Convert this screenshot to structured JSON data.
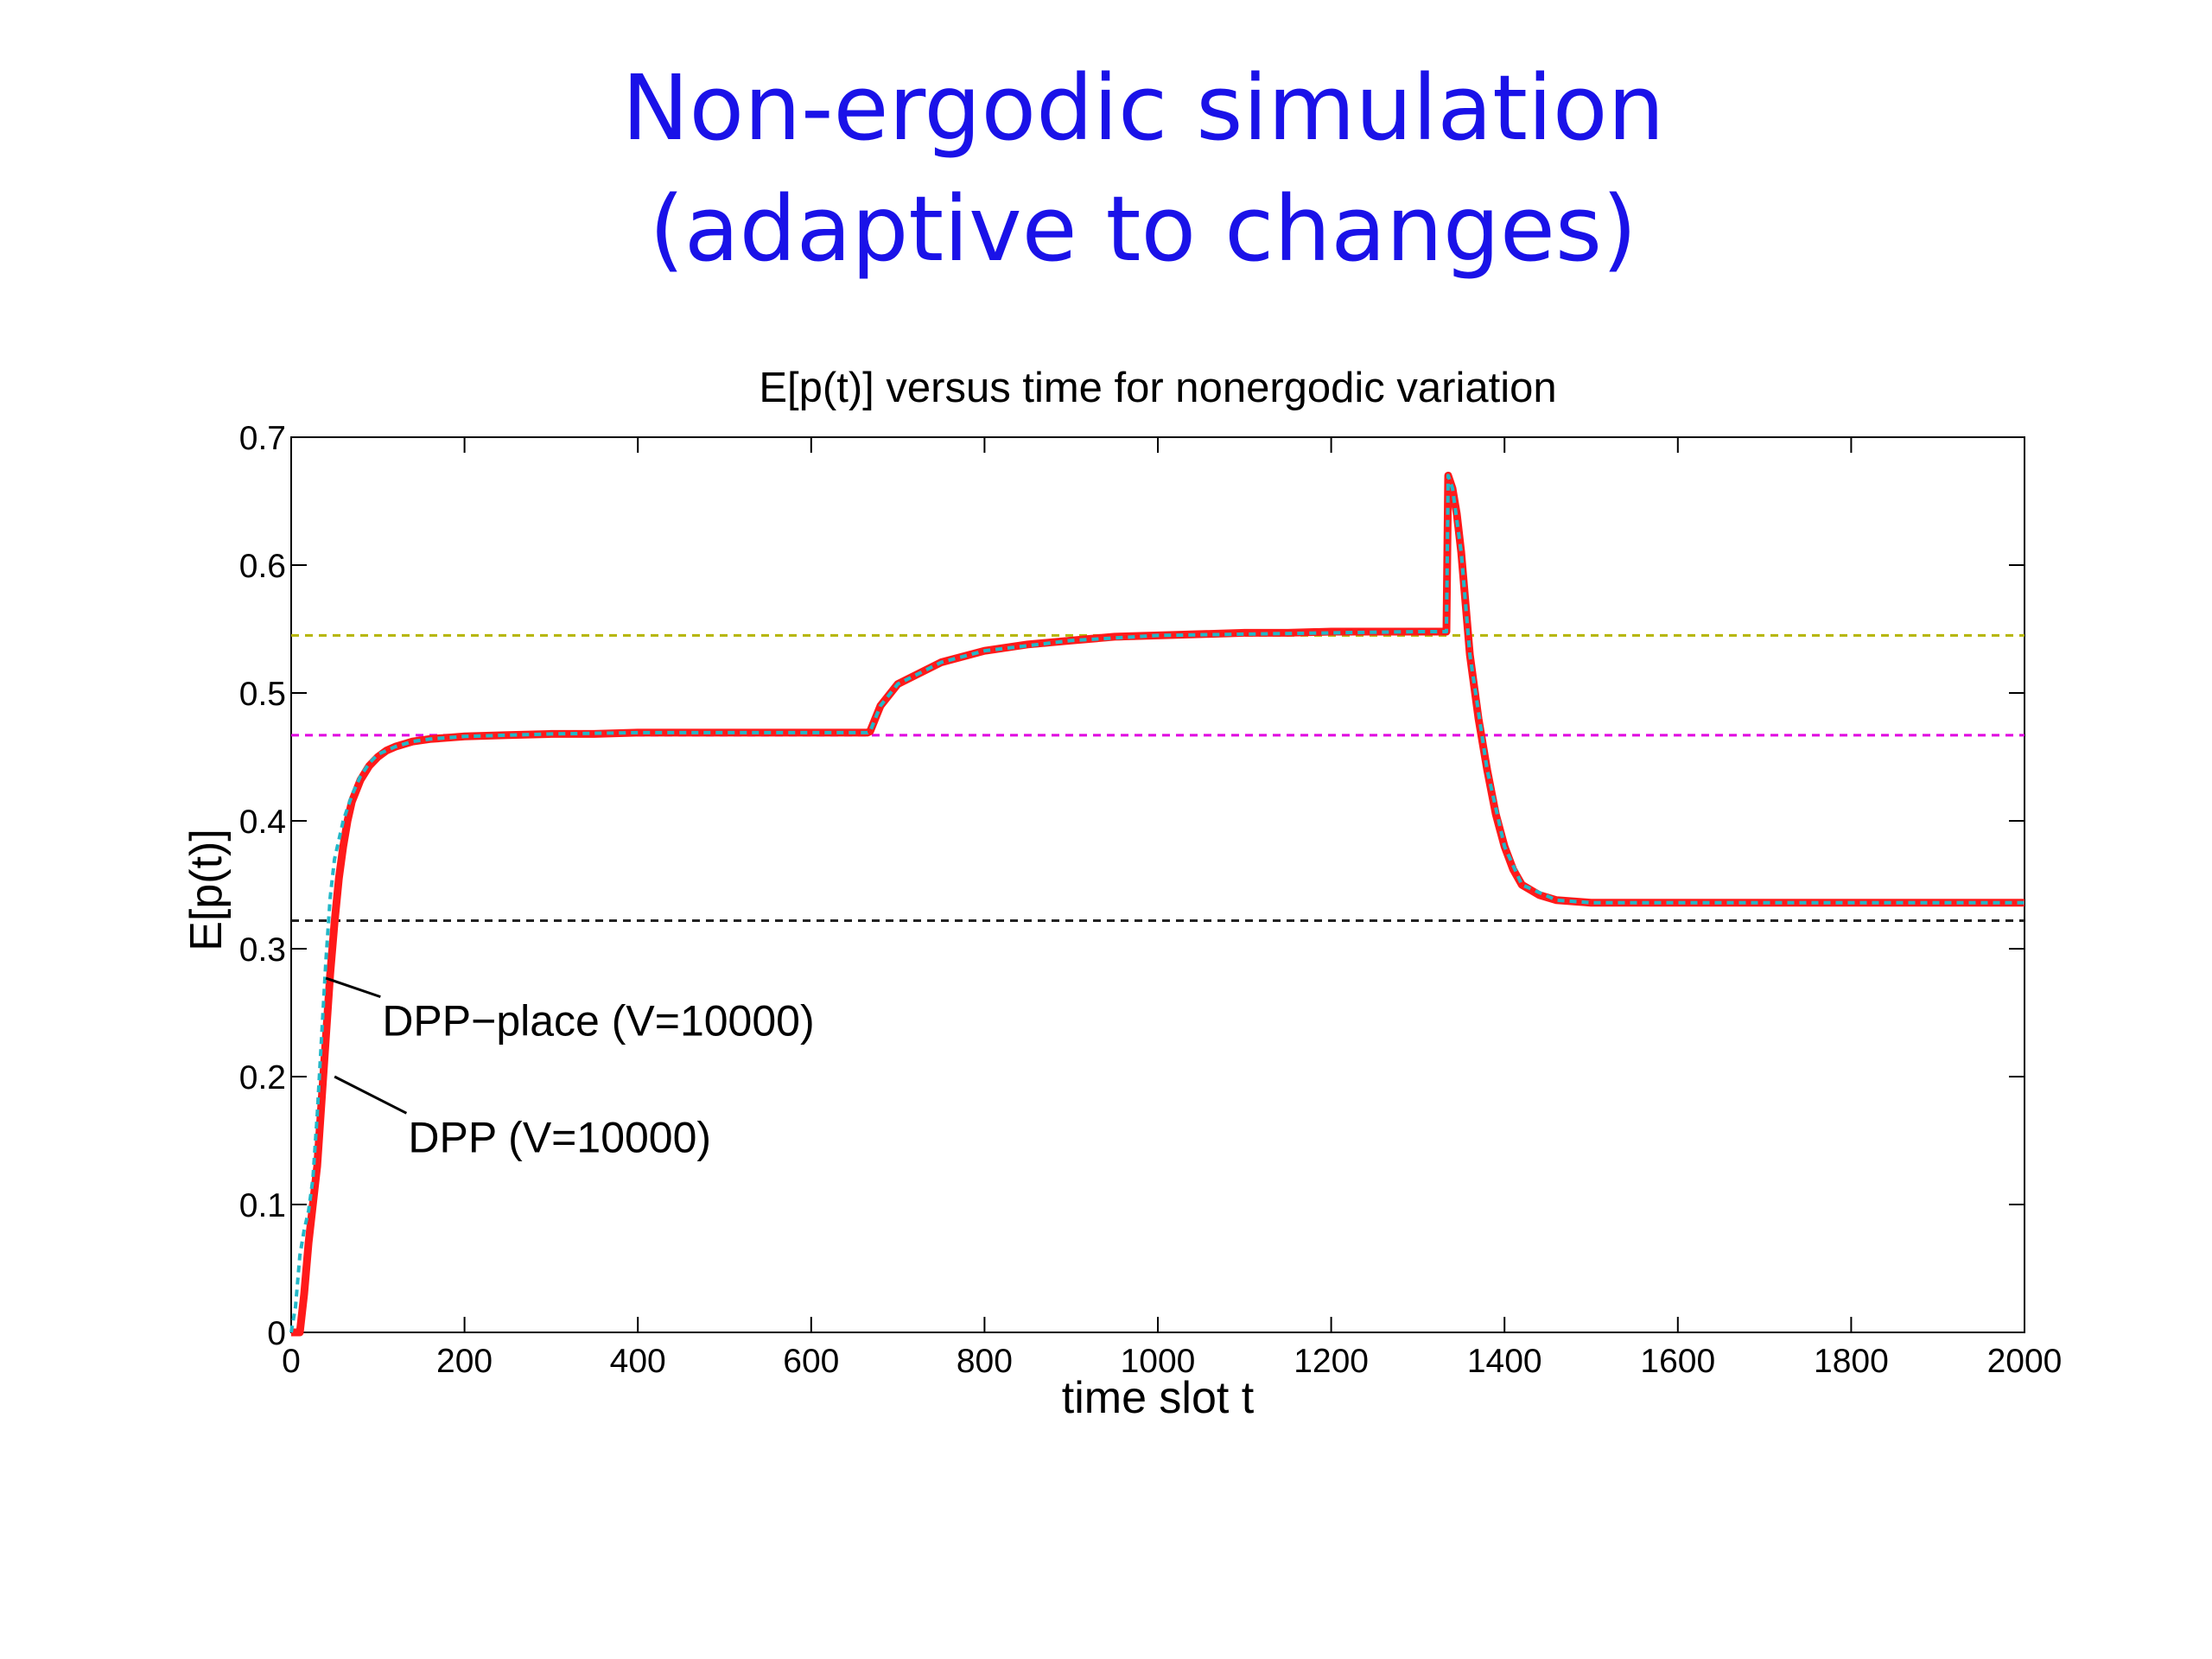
{
  "slide": {
    "title_line1": "Non-ergodic simulation",
    "title_line2": "(adaptive to changes)"
  },
  "chart_data": {
    "type": "line",
    "title": "E[p(t)] versus time for nonergodic variation",
    "xlabel": "time slot t",
    "ylabel": "E[p(t)]",
    "xlim": [
      0,
      2000
    ],
    "ylim": [
      0,
      0.7
    ],
    "xticks": [
      0,
      200,
      400,
      600,
      800,
      1000,
      1200,
      1400,
      1600,
      1800,
      2000
    ],
    "yticks": [
      0,
      0.1,
      0.2,
      0.3,
      0.4,
      0.5,
      0.6,
      0.7
    ],
    "grid": false,
    "reference_lines": [
      {
        "y": 0.545,
        "color": "#b5b500"
      },
      {
        "y": 0.467,
        "color": "#e000e0"
      },
      {
        "y": 0.322,
        "color": "#222222"
      }
    ],
    "series": [
      {
        "name": "DPP (V=10000)",
        "color": "#ff1a1a",
        "style": "solid",
        "x": [
          0,
          10,
          15,
          20,
          25,
          30,
          35,
          40,
          45,
          50,
          55,
          60,
          65,
          70,
          80,
          90,
          100,
          110,
          120,
          140,
          160,
          180,
          200,
          250,
          300,
          350,
          400,
          450,
          500,
          550,
          600,
          640,
          665,
          668,
          680,
          700,
          750,
          800,
          850,
          900,
          950,
          1000,
          1050,
          1100,
          1150,
          1200,
          1250,
          1300,
          1333,
          1335,
          1340,
          1345,
          1350,
          1355,
          1360,
          1370,
          1380,
          1390,
          1400,
          1410,
          1420,
          1440,
          1460,
          1500,
          1600,
          1700,
          1800,
          1900,
          2000
        ],
        "y": [
          0,
          0,
          0.03,
          0.07,
          0.1,
          0.13,
          0.18,
          0.23,
          0.28,
          0.32,
          0.355,
          0.38,
          0.4,
          0.415,
          0.432,
          0.443,
          0.45,
          0.455,
          0.458,
          0.462,
          0.464,
          0.465,
          0.466,
          0.467,
          0.468,
          0.468,
          0.469,
          0.469,
          0.469,
          0.469,
          0.469,
          0.469,
          0.469,
          0.47,
          0.49,
          0.507,
          0.524,
          0.533,
          0.538,
          0.541,
          0.544,
          0.545,
          0.546,
          0.547,
          0.547,
          0.548,
          0.548,
          0.548,
          0.548,
          0.67,
          0.66,
          0.64,
          0.61,
          0.57,
          0.53,
          0.48,
          0.44,
          0.405,
          0.38,
          0.362,
          0.35,
          0.342,
          0.338,
          0.336,
          0.336,
          0.336,
          0.336,
          0.336,
          0.336
        ]
      },
      {
        "name": "DPP−place (V=10000)",
        "color": "#22b8c8",
        "style": "dashed",
        "x": [
          0,
          5,
          10,
          15,
          20,
          25,
          30,
          35,
          40,
          45,
          50,
          60,
          70,
          80,
          90,
          100,
          120,
          140,
          160,
          200,
          250,
          300,
          400,
          500,
          600,
          665,
          668,
          680,
          700,
          750,
          800,
          900,
          1000,
          1100,
          1200,
          1300,
          1333,
          1335,
          1340,
          1350,
          1360,
          1380,
          1400,
          1420,
          1460,
          1500,
          1600,
          1800,
          2000
        ],
        "y": [
          0,
          0.02,
          0.06,
          0.08,
          0.095,
          0.12,
          0.17,
          0.23,
          0.29,
          0.34,
          0.37,
          0.4,
          0.42,
          0.435,
          0.445,
          0.452,
          0.458,
          0.462,
          0.464,
          0.466,
          0.467,
          0.468,
          0.469,
          0.469,
          0.469,
          0.469,
          0.47,
          0.49,
          0.507,
          0.524,
          0.533,
          0.541,
          0.545,
          0.546,
          0.547,
          0.548,
          0.548,
          0.67,
          0.66,
          0.61,
          0.53,
          0.44,
          0.38,
          0.35,
          0.338,
          0.336,
          0.336,
          0.336,
          0.336
        ]
      }
    ],
    "annotations": [
      {
        "text": "DPP−place (V=10000)",
        "x": 105,
        "y": 0.232,
        "arrow_to": [
          40,
          0.277
        ]
      },
      {
        "text": "DPP (V=10000)",
        "x": 135,
        "y": 0.141,
        "arrow_to": [
          50,
          0.2
        ]
      }
    ]
  }
}
